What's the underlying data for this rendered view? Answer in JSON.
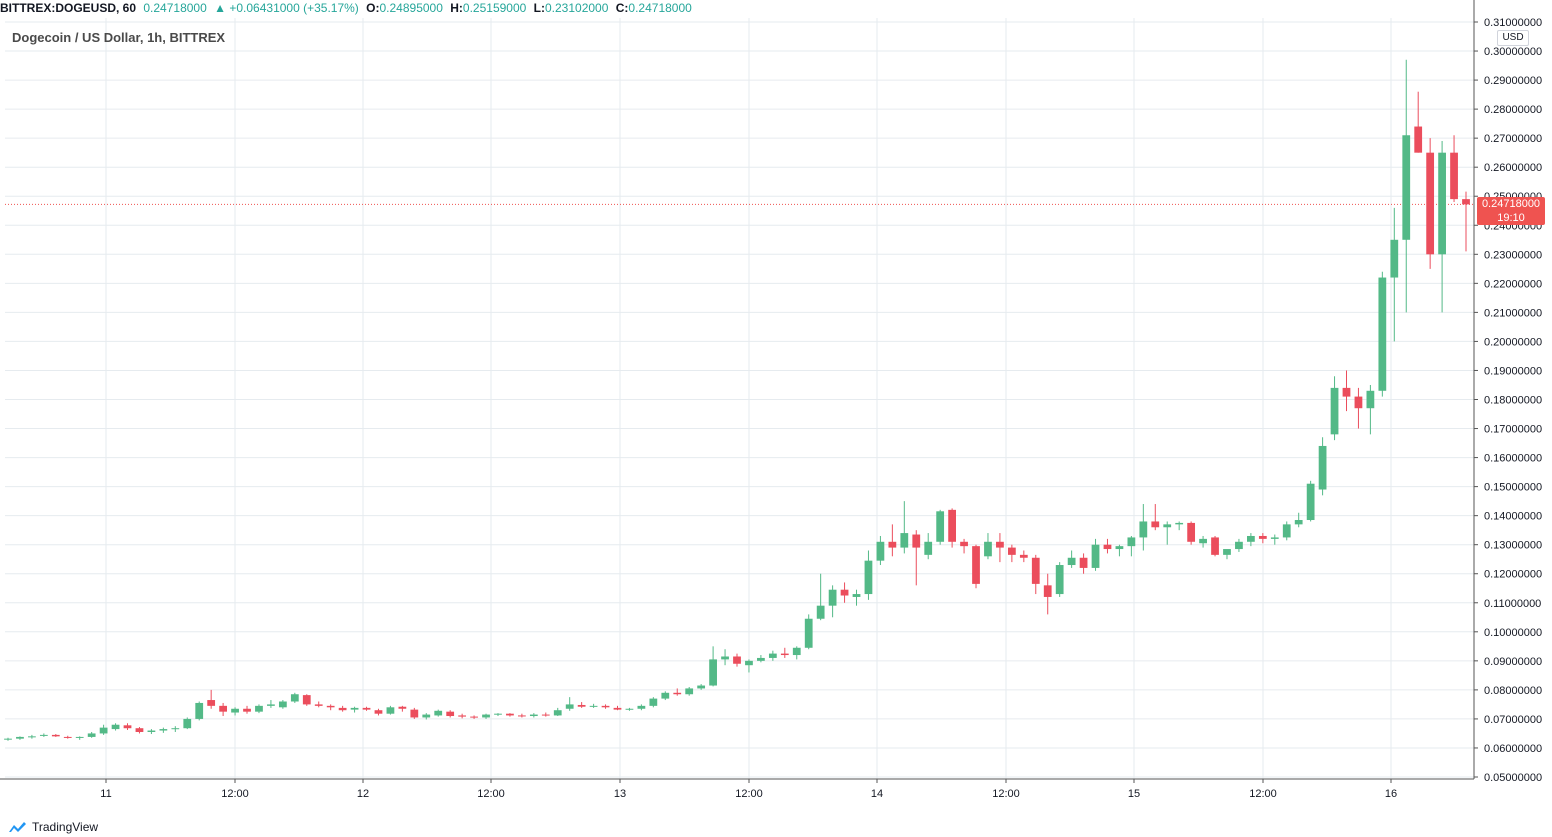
{
  "header": {
    "symbol": "BITTREX:DOGEUSD, 60",
    "last": "0.24718000",
    "arrow": "▲",
    "change": "+0.06431000 (+35.17%)",
    "o_label": "O:",
    "o_value": "0.24895000",
    "h_label": "H:",
    "h_value": "0.25159000",
    "l_label": "L:",
    "l_value": "0.23102000",
    "c_label": "C:",
    "c_value": "0.24718000"
  },
  "subtitle": "Dogecoin / US Dollar, 1h, BITTREX",
  "currency": "USD",
  "price_tag": {
    "price": "0.24718000",
    "countdown": "19:10"
  },
  "branding": "TradingView",
  "colors": {
    "up": "#26a69a",
    "down": "#ef5350",
    "candle_up": "#53b987",
    "candle_down": "#eb4d5c",
    "grid": "#e6ebef",
    "axis_text": "#131722",
    "last_line": "#ef5350"
  },
  "chart_data": {
    "type": "candlestick",
    "title": "Dogecoin / US Dollar, 1h, BITTREX",
    "ylim": [
      0.05,
      0.31
    ],
    "y_ticks": [
      "0.05000000",
      "0.06000000",
      "0.07000000",
      "0.08000000",
      "0.09000000",
      "0.10000000",
      "0.11000000",
      "0.12000000",
      "0.13000000",
      "0.14000000",
      "0.15000000",
      "0.16000000",
      "0.17000000",
      "0.18000000",
      "0.19000000",
      "0.20000000",
      "0.21000000",
      "0.22000000",
      "0.23000000",
      "0.24000000",
      "0.25000000",
      "0.26000000",
      "0.27000000",
      "0.28000000",
      "0.29000000",
      "0.30000000",
      "0.31000000"
    ],
    "x_ticks": [
      "11",
      "12:00",
      "12",
      "12:00",
      "13",
      "12:00",
      "14",
      "12:00",
      "15",
      "12:00",
      "16"
    ],
    "grid": true,
    "last_price": 0.24718,
    "candles_note": "sampled hourly OHLC, approx every ~2h",
    "candles": [
      [
        0.063,
        0.0635,
        0.0625,
        0.0632
      ],
      [
        0.0632,
        0.064,
        0.0628,
        0.0638
      ],
      [
        0.0638,
        0.0645,
        0.0632,
        0.064
      ],
      [
        0.0642,
        0.065,
        0.0638,
        0.0645
      ],
      [
        0.0645,
        0.0648,
        0.0638,
        0.064
      ],
      [
        0.0638,
        0.0642,
        0.0632,
        0.0635
      ],
      [
        0.0635,
        0.064,
        0.0628,
        0.0638
      ],
      [
        0.0638,
        0.0655,
        0.0635,
        0.065
      ],
      [
        0.065,
        0.068,
        0.0645,
        0.067
      ],
      [
        0.0665,
        0.0685,
        0.066,
        0.068
      ],
      [
        0.0678,
        0.0685,
        0.0662,
        0.0668
      ],
      [
        0.0668,
        0.0672,
        0.065,
        0.0655
      ],
      [
        0.0655,
        0.0665,
        0.0648,
        0.066
      ],
      [
        0.066,
        0.067,
        0.0652,
        0.0665
      ],
      [
        0.0665,
        0.0675,
        0.0655,
        0.0668
      ],
      [
        0.0668,
        0.0705,
        0.0665,
        0.07
      ],
      [
        0.07,
        0.076,
        0.0695,
        0.0755
      ],
      [
        0.0765,
        0.08,
        0.0735,
        0.0745
      ],
      [
        0.0745,
        0.0755,
        0.071,
        0.0725
      ],
      [
        0.0722,
        0.074,
        0.0712,
        0.0735
      ],
      [
        0.0735,
        0.0745,
        0.0718,
        0.0725
      ],
      [
        0.0725,
        0.075,
        0.072,
        0.0745
      ],
      [
        0.0745,
        0.0765,
        0.0738,
        0.075
      ],
      [
        0.074,
        0.0765,
        0.0735,
        0.076
      ],
      [
        0.076,
        0.079,
        0.0755,
        0.0785
      ],
      [
        0.0782,
        0.0785,
        0.0745,
        0.075
      ],
      [
        0.075,
        0.076,
        0.074,
        0.0745
      ],
      [
        0.0745,
        0.075,
        0.073,
        0.074
      ],
      [
        0.0738,
        0.0745,
        0.0725,
        0.073
      ],
      [
        0.0732,
        0.0742,
        0.0722,
        0.0738
      ],
      [
        0.0738,
        0.0742,
        0.0728,
        0.0732
      ],
      [
        0.073,
        0.0735,
        0.0712,
        0.0718
      ],
      [
        0.0718,
        0.0745,
        0.0715,
        0.074
      ],
      [
        0.0742,
        0.0745,
        0.0725,
        0.0735
      ],
      [
        0.0732,
        0.0738,
        0.07,
        0.0705
      ],
      [
        0.0705,
        0.072,
        0.0698,
        0.0715
      ],
      [
        0.0712,
        0.0732,
        0.0708,
        0.0728
      ],
      [
        0.0725,
        0.073,
        0.0705,
        0.071
      ],
      [
        0.0712,
        0.0718,
        0.0702,
        0.0708
      ],
      [
        0.0708,
        0.0712,
        0.07,
        0.0705
      ],
      [
        0.0705,
        0.0718,
        0.07,
        0.0715
      ],
      [
        0.0715,
        0.072,
        0.071,
        0.0718
      ],
      [
        0.0718,
        0.072,
        0.0708,
        0.0712
      ],
      [
        0.0712,
        0.0718,
        0.0705,
        0.071
      ],
      [
        0.071,
        0.072,
        0.0705,
        0.0715
      ],
      [
        0.0715,
        0.0722,
        0.0708,
        0.0712
      ],
      [
        0.0712,
        0.0738,
        0.071,
        0.073
      ],
      [
        0.0735,
        0.0775,
        0.0728,
        0.075
      ],
      [
        0.0748,
        0.0758,
        0.0738,
        0.0742
      ],
      [
        0.0742,
        0.0752,
        0.0738,
        0.0745
      ],
      [
        0.0745,
        0.075,
        0.0735,
        0.074
      ],
      [
        0.0738,
        0.0745,
        0.073,
        0.0732
      ],
      [
        0.0732,
        0.0738,
        0.0728,
        0.0735
      ],
      [
        0.0735,
        0.075,
        0.073,
        0.0745
      ],
      [
        0.0745,
        0.0775,
        0.074,
        0.077
      ],
      [
        0.077,
        0.0795,
        0.0765,
        0.079
      ],
      [
        0.079,
        0.0805,
        0.078,
        0.0785
      ],
      [
        0.0785,
        0.081,
        0.078,
        0.0805
      ],
      [
        0.0805,
        0.082,
        0.08,
        0.0815
      ],
      [
        0.0815,
        0.095,
        0.0812,
        0.0905
      ],
      [
        0.0905,
        0.094,
        0.0885,
        0.0915
      ],
      [
        0.0915,
        0.0925,
        0.088,
        0.089
      ],
      [
        0.0885,
        0.0905,
        0.086,
        0.09
      ],
      [
        0.09,
        0.092,
        0.0895,
        0.091
      ],
      [
        0.091,
        0.0935,
        0.09,
        0.0925
      ],
      [
        0.0925,
        0.0945,
        0.091,
        0.092
      ],
      [
        0.092,
        0.095,
        0.0905,
        0.0945
      ],
      [
        0.0945,
        0.106,
        0.094,
        0.1045
      ],
      [
        0.1045,
        0.12,
        0.104,
        0.109
      ],
      [
        0.109,
        0.116,
        0.105,
        0.1145
      ],
      [
        0.1145,
        0.117,
        0.11,
        0.1125
      ],
      [
        0.112,
        0.1145,
        0.109,
        0.113
      ],
      [
        0.113,
        0.128,
        0.111,
        0.1245
      ],
      [
        0.1245,
        0.133,
        0.123,
        0.131
      ],
      [
        0.131,
        0.137,
        0.126,
        0.129
      ],
      [
        0.129,
        0.145,
        0.127,
        0.134
      ],
      [
        0.1335,
        0.135,
        0.116,
        0.129
      ],
      [
        0.1265,
        0.134,
        0.125,
        0.131
      ],
      [
        0.131,
        0.142,
        0.13,
        0.1415
      ],
      [
        0.142,
        0.1425,
        0.129,
        0.131
      ],
      [
        0.131,
        0.132,
        0.127,
        0.1295
      ],
      [
        0.1295,
        0.13,
        0.115,
        0.1165
      ],
      [
        0.126,
        0.134,
        0.125,
        0.131
      ],
      [
        0.131,
        0.134,
        0.124,
        0.129
      ],
      [
        0.129,
        0.13,
        0.124,
        0.1265
      ],
      [
        0.1265,
        0.128,
        0.124,
        0.1255
      ],
      [
        0.1255,
        0.1265,
        0.113,
        0.1165
      ],
      [
        0.116,
        0.12,
        0.106,
        0.112
      ],
      [
        0.113,
        0.124,
        0.112,
        0.123
      ],
      [
        0.123,
        0.128,
        0.122,
        0.1255
      ],
      [
        0.1255,
        0.127,
        0.12,
        0.122
      ],
      [
        0.122,
        0.132,
        0.121,
        0.13
      ],
      [
        0.13,
        0.132,
        0.127,
        0.1285
      ],
      [
        0.1285,
        0.13,
        0.126,
        0.1295
      ],
      [
        0.1295,
        0.133,
        0.126,
        0.1325
      ],
      [
        0.1325,
        0.144,
        0.128,
        0.138
      ],
      [
        0.138,
        0.144,
        0.135,
        0.136
      ],
      [
        0.136,
        0.138,
        0.13,
        0.137
      ],
      [
        0.137,
        0.138,
        0.135,
        0.1375
      ],
      [
        0.1375,
        0.138,
        0.13,
        0.131
      ],
      [
        0.1305,
        0.133,
        0.129,
        0.132
      ],
      [
        0.1325,
        0.133,
        0.126,
        0.1265
      ],
      [
        0.1265,
        0.128,
        0.125,
        0.1285
      ],
      [
        0.1285,
        0.132,
        0.1275,
        0.131
      ],
      [
        0.131,
        0.134,
        0.1295,
        0.133
      ],
      [
        0.133,
        0.134,
        0.1305,
        0.132
      ],
      [
        0.132,
        0.1335,
        0.13,
        0.1325
      ],
      [
        0.1325,
        0.138,
        0.1315,
        0.137
      ],
      [
        0.137,
        0.141,
        0.136,
        0.1385
      ],
      [
        0.1385,
        0.152,
        0.138,
        0.151
      ],
      [
        0.149,
        0.167,
        0.147,
        0.164
      ],
      [
        0.168,
        0.188,
        0.166,
        0.184
      ],
      [
        0.184,
        0.19,
        0.176,
        0.181
      ],
      [
        0.181,
        0.184,
        0.17,
        0.177
      ],
      [
        0.177,
        0.185,
        0.168,
        0.183
      ],
      [
        0.183,
        0.224,
        0.181,
        0.222
      ],
      [
        0.222,
        0.246,
        0.2,
        0.235
      ],
      [
        0.235,
        0.297,
        0.21,
        0.271
      ],
      [
        0.274,
        0.286,
        0.265,
        0.265
      ],
      [
        0.265,
        0.27,
        0.225,
        0.23
      ],
      [
        0.23,
        0.269,
        0.21,
        0.265
      ],
      [
        0.265,
        0.271,
        0.248,
        0.249
      ],
      [
        0.249,
        0.2516,
        0.231,
        0.2472
      ]
    ]
  }
}
